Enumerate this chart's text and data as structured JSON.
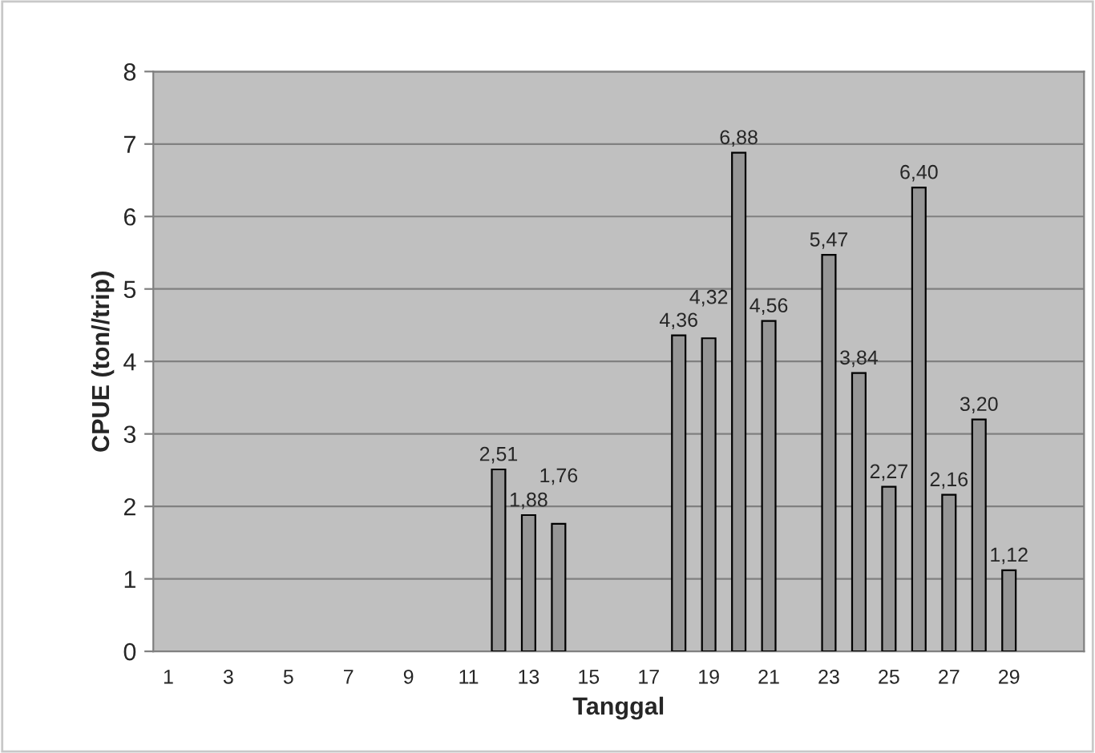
{
  "chart_data": {
    "type": "bar",
    "xlabel": "Tanggal",
    "ylabel": "CPUE (ton//trip)",
    "categories": [
      "1",
      null,
      "3",
      null,
      "5",
      null,
      "7",
      null,
      "9",
      null,
      "11",
      null,
      "13",
      null,
      "15",
      null,
      "17",
      null,
      "19",
      null,
      "21",
      null,
      "23",
      null,
      "25",
      null,
      "27",
      null,
      "29",
      null,
      null
    ],
    "values": [
      null,
      null,
      null,
      null,
      null,
      null,
      null,
      null,
      null,
      null,
      null,
      2.51,
      1.88,
      1.76,
      null,
      null,
      null,
      4.36,
      4.32,
      6.88,
      4.56,
      null,
      5.47,
      3.84,
      2.27,
      6.4,
      2.16,
      3.2,
      1.12,
      null,
      null
    ],
    "value_labels": [
      null,
      null,
      null,
      null,
      null,
      null,
      null,
      null,
      null,
      null,
      null,
      "2,51",
      "1,88",
      "1,76",
      null,
      null,
      null,
      "4,36",
      "4,32",
      "6,88",
      "4,56",
      null,
      "5,47",
      "3,84",
      "2,27",
      "6,40",
      "2,16",
      "3,20",
      "1,12",
      null,
      null
    ],
    "color": "#969696",
    "ylim": [
      0,
      8
    ],
    "yticks": [
      0,
      1,
      2,
      3,
      4,
      5,
      6,
      7,
      8
    ],
    "grid": "y"
  }
}
